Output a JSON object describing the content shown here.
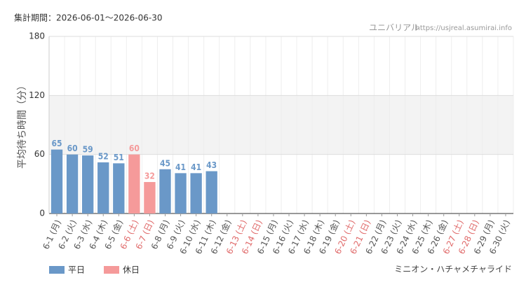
{
  "chart_data": {
    "type": "bar",
    "title": "集計期間：2026-06-01～2026-06-30",
    "source": "ユニバリアル",
    "url": "https://usjreal.asumirai.info",
    "y_label": "平均待ち時間（分）",
    "footer": "ミニオン・ハチャメチャライド",
    "categories": [
      "6-1 (月)",
      "6-2 (火)",
      "6-3 (水)",
      "6-4 (木)",
      "6-5 (金)",
      "6-6 (土)",
      "6-7 (日)",
      "6-8 (月)",
      "6-9 (火)",
      "6-10 (水)",
      "6-11 (木)",
      "6-12 (金)",
      "6-13 (土)",
      "6-14 (日)",
      "6-15 (月)",
      "6-16 (火)",
      "6-17 (水)",
      "6-18 (木)",
      "6-19 (金)",
      "6-20 (土)",
      "6-21 (日)",
      "6-22 (月)",
      "6-23 (火)",
      "6-24 (水)",
      "6-25 (木)",
      "6-26 (金)",
      "6-27 (土)",
      "6-28 (日)",
      "6-29 (月)",
      "6-30 (火)"
    ],
    "category_series": [
      0,
      0,
      0,
      0,
      0,
      1,
      1,
      0,
      0,
      0,
      0,
      0,
      1,
      1,
      0,
      0,
      0,
      0,
      0,
      1,
      1,
      0,
      0,
      0,
      0,
      0,
      1,
      1,
      0,
      0
    ],
    "series": [
      {
        "name": "平日",
        "color": "#6a98c8",
        "values": [
          65,
          60,
          59,
          52,
          51,
          null,
          null,
          45,
          41,
          41,
          43,
          null,
          null,
          null,
          null,
          null,
          null,
          null,
          null,
          null,
          null,
          null,
          null,
          null,
          null,
          null,
          null,
          null,
          null,
          null
        ]
      },
      {
        "name": "休日",
        "color": "#f59a9a",
        "values": [
          null,
          null,
          null,
          null,
          null,
          60,
          32,
          null,
          null,
          null,
          null,
          null,
          null,
          null,
          null,
          null,
          null,
          null,
          null,
          null,
          null,
          null,
          null,
          null,
          null,
          null,
          null,
          null,
          null,
          null
        ]
      }
    ],
    "label_colors": [
      "#555555",
      "#e06a6a"
    ],
    "ylim": [
      0,
      180
    ],
    "yticks": [
      0,
      60,
      120,
      180
    ],
    "shaded_range": [
      60,
      120
    ],
    "grid": true
  }
}
